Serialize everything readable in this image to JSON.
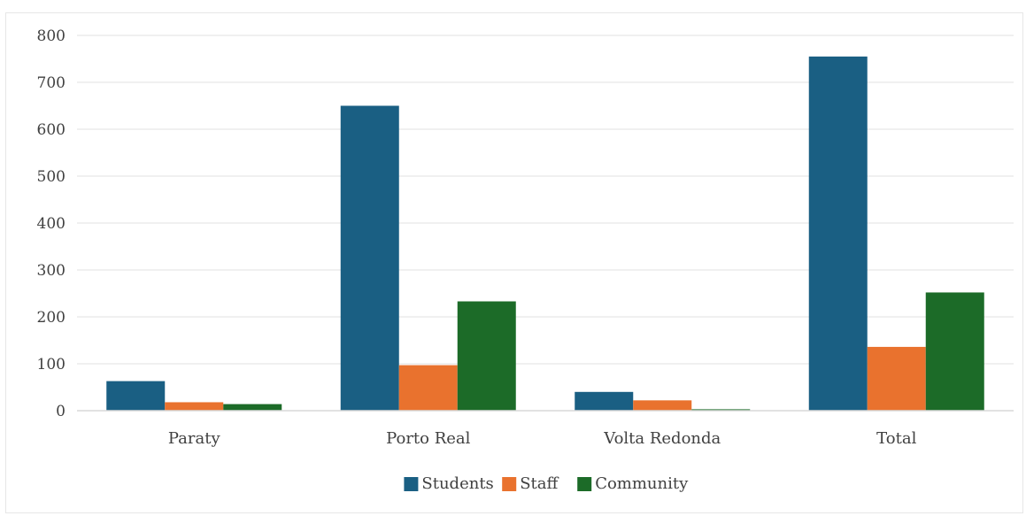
{
  "chart_data": {
    "type": "bar",
    "title": "",
    "xlabel": "",
    "ylabel": "",
    "categories": [
      "Paraty",
      "Porto Real",
      "Volta Redonda",
      "Total"
    ],
    "ylim": [
      0,
      800
    ],
    "yticks": [
      0,
      100,
      200,
      300,
      400,
      500,
      600,
      700,
      800
    ],
    "grid": true,
    "legend_position": "bottom",
    "series": [
      {
        "name": "Students",
        "color": "#1a5f83",
        "values": [
          63,
          650,
          40,
          755
        ]
      },
      {
        "name": "Staff",
        "color": "#e9722e",
        "values": [
          18,
          97,
          22,
          136
        ]
      },
      {
        "name": "Community",
        "color": "#1c6b28",
        "values": [
          14,
          233,
          3,
          252
        ]
      }
    ]
  }
}
